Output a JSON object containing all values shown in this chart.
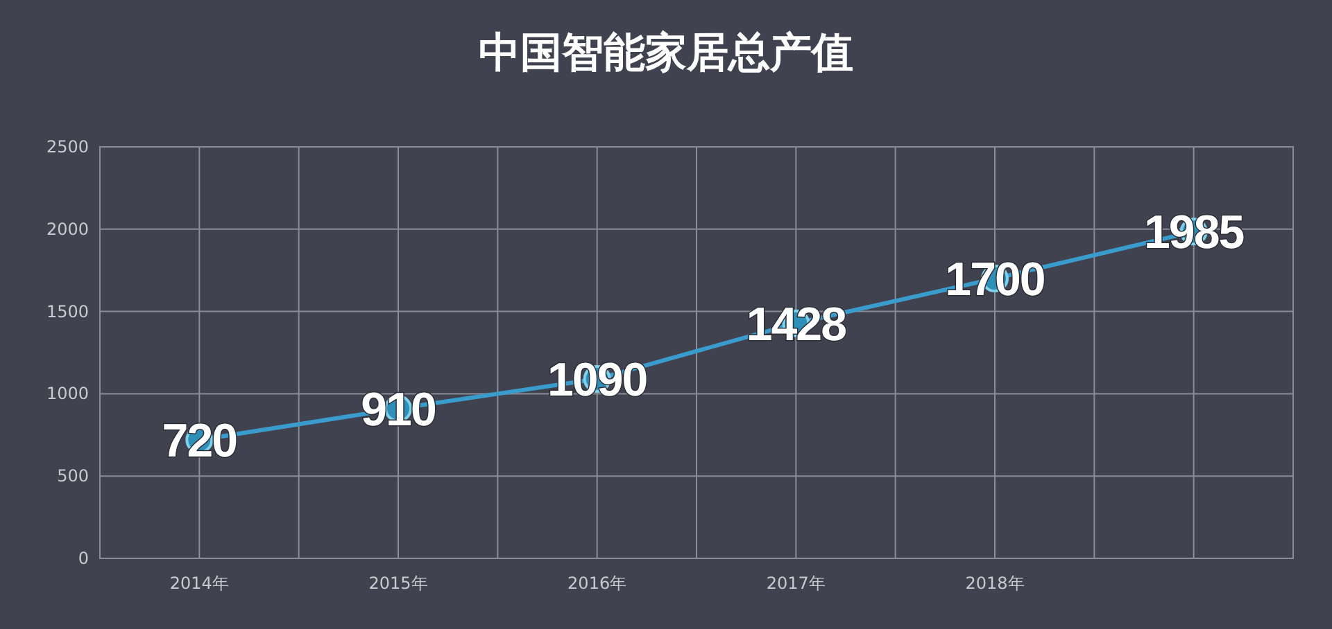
{
  "chart_data": {
    "type": "line",
    "title": "中国智能家居总产值",
    "categories": [
      "2014年",
      "2015年",
      "2016年",
      "2017年",
      "2018年",
      null
    ],
    "values": [
      720,
      910,
      1090,
      1428,
      1700,
      1985
    ],
    "color": "#3a9ccc",
    "marker": "circle",
    "data_labels": true,
    "ylim": [
      0,
      2500
    ],
    "yticks": [
      0,
      500,
      1000,
      1500,
      2000,
      2500
    ],
    "grid": true
  }
}
